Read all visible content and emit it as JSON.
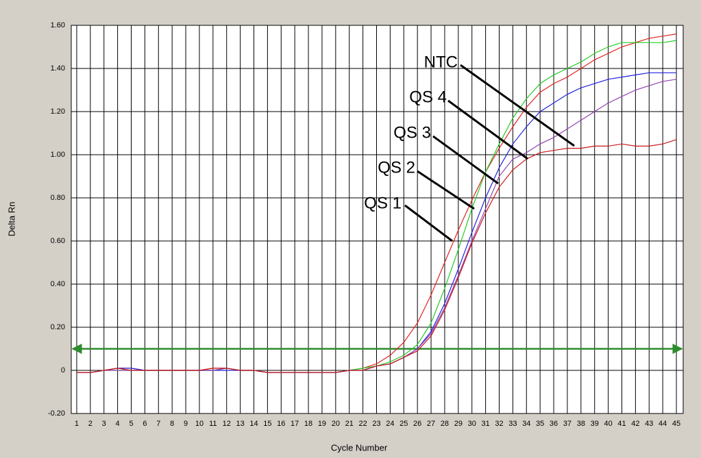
{
  "chart_data": {
    "type": "line",
    "x_label": "Cycle Number",
    "y_label": "Delta Rn",
    "x": [
      1,
      2,
      3,
      4,
      5,
      6,
      7,
      8,
      9,
      10,
      11,
      12,
      13,
      14,
      15,
      16,
      17,
      18,
      19,
      20,
      21,
      22,
      23,
      24,
      25,
      26,
      27,
      28,
      29,
      30,
      31,
      32,
      33,
      34,
      35,
      36,
      37,
      38,
      39,
      40,
      41,
      42,
      43,
      44,
      45
    ],
    "xlim": [
      0.6,
      45.5
    ],
    "xticks": [
      1,
      2,
      3,
      4,
      5,
      6,
      7,
      8,
      9,
      10,
      11,
      12,
      13,
      14,
      15,
      16,
      17,
      18,
      19,
      20,
      21,
      22,
      23,
      24,
      25,
      26,
      27,
      28,
      29,
      30,
      31,
      32,
      33,
      34,
      35,
      36,
      37,
      38,
      39,
      40,
      41,
      42,
      43,
      44,
      45
    ],
    "ylim": [
      -0.2,
      1.6
    ],
    "yticks": [
      {
        "value": -0.2,
        "label": "-0.20"
      },
      0,
      {
        "value": 0.2,
        "label": "0.20"
      },
      {
        "value": 0.4,
        "label": "0.40"
      },
      {
        "value": 0.6,
        "label": "0.60"
      },
      {
        "value": 0.8,
        "label": "0.80"
      },
      {
        "value": 1.0,
        "label": "1.00"
      },
      {
        "value": 1.2,
        "label": "1.20"
      },
      {
        "value": 1.4,
        "label": "1.40"
      },
      {
        "value": 1.6,
        "label": "1.60"
      }
    ],
    "grid": true,
    "threshold": 0.1,
    "threshold_color": "#2e8b2e",
    "series": [
      {
        "name": "QS 1",
        "color": "#e02020",
        "values": [
          -0.01,
          -0.01,
          0,
          0.01,
          0.01,
          0,
          0,
          0,
          0,
          0,
          0.01,
          0.01,
          0,
          0,
          -0.01,
          -0.01,
          -0.01,
          -0.01,
          -0.01,
          -0.01,
          0,
          0.01,
          0.03,
          0.07,
          0.13,
          0.22,
          0.35,
          0.5,
          0.65,
          0.79,
          0.92,
          1.03,
          1.13,
          1.22,
          1.29,
          1.33,
          1.36,
          1.4,
          1.44,
          1.47,
          1.5,
          1.52,
          1.54,
          1.55,
          1.56
        ]
      },
      {
        "name": "QS 2",
        "color": "#22cc22",
        "values": [
          -0.01,
          -0.01,
          0,
          0,
          0,
          0,
          0,
          0,
          0,
          0,
          0,
          0.01,
          0,
          0,
          -0.01,
          -0.01,
          -0.01,
          -0.01,
          -0.01,
          -0.01,
          0,
          0.01,
          0.02,
          0.04,
          0.07,
          0.12,
          0.22,
          0.38,
          0.56,
          0.75,
          0.92,
          1.05,
          1.17,
          1.26,
          1.33,
          1.37,
          1.4,
          1.43,
          1.47,
          1.5,
          1.52,
          1.52,
          1.52,
          1.52,
          1.53
        ]
      },
      {
        "name": "QS 3",
        "color": "#2020e0",
        "values": [
          -0.01,
          -0.01,
          0,
          0.01,
          0.01,
          0,
          0,
          0,
          0,
          0,
          0,
          0,
          0,
          0,
          -0.01,
          -0.01,
          -0.01,
          -0.01,
          -0.01,
          -0.01,
          0,
          0,
          0.02,
          0.03,
          0.06,
          0.1,
          0.18,
          0.31,
          0.47,
          0.64,
          0.8,
          0.94,
          1.05,
          1.13,
          1.2,
          1.24,
          1.28,
          1.31,
          1.33,
          1.35,
          1.36,
          1.37,
          1.38,
          1.38,
          1.38
        ]
      },
      {
        "name": "QS 4",
        "color": "#9040b0",
        "values": [
          -0.01,
          -0.01,
          0,
          0,
          0,
          0,
          0,
          0,
          0,
          0,
          0,
          0.01,
          0,
          0,
          -0.01,
          -0.01,
          -0.01,
          -0.01,
          -0.01,
          -0.01,
          0,
          0,
          0.02,
          0.03,
          0.06,
          0.1,
          0.17,
          0.29,
          0.44,
          0.6,
          0.75,
          0.9,
          0.98,
          1.01,
          1.05,
          1.08,
          1.12,
          1.16,
          1.2,
          1.24,
          1.27,
          1.3,
          1.32,
          1.34,
          1.35
        ]
      },
      {
        "name": "NTC",
        "color": "#c81818",
        "values": [
          -0.01,
          -0.01,
          0,
          0.01,
          0,
          0,
          0,
          0,
          0,
          0,
          0.01,
          0.01,
          0,
          0,
          -0.01,
          -0.01,
          -0.01,
          -0.01,
          -0.01,
          -0.01,
          0,
          0,
          0.02,
          0.03,
          0.06,
          0.09,
          0.16,
          0.28,
          0.43,
          0.59,
          0.73,
          0.85,
          0.93,
          0.98,
          1.01,
          1.02,
          1.03,
          1.03,
          1.04,
          1.04,
          1.05,
          1.04,
          1.04,
          1.05,
          1.07
        ]
      }
    ]
  }
}
